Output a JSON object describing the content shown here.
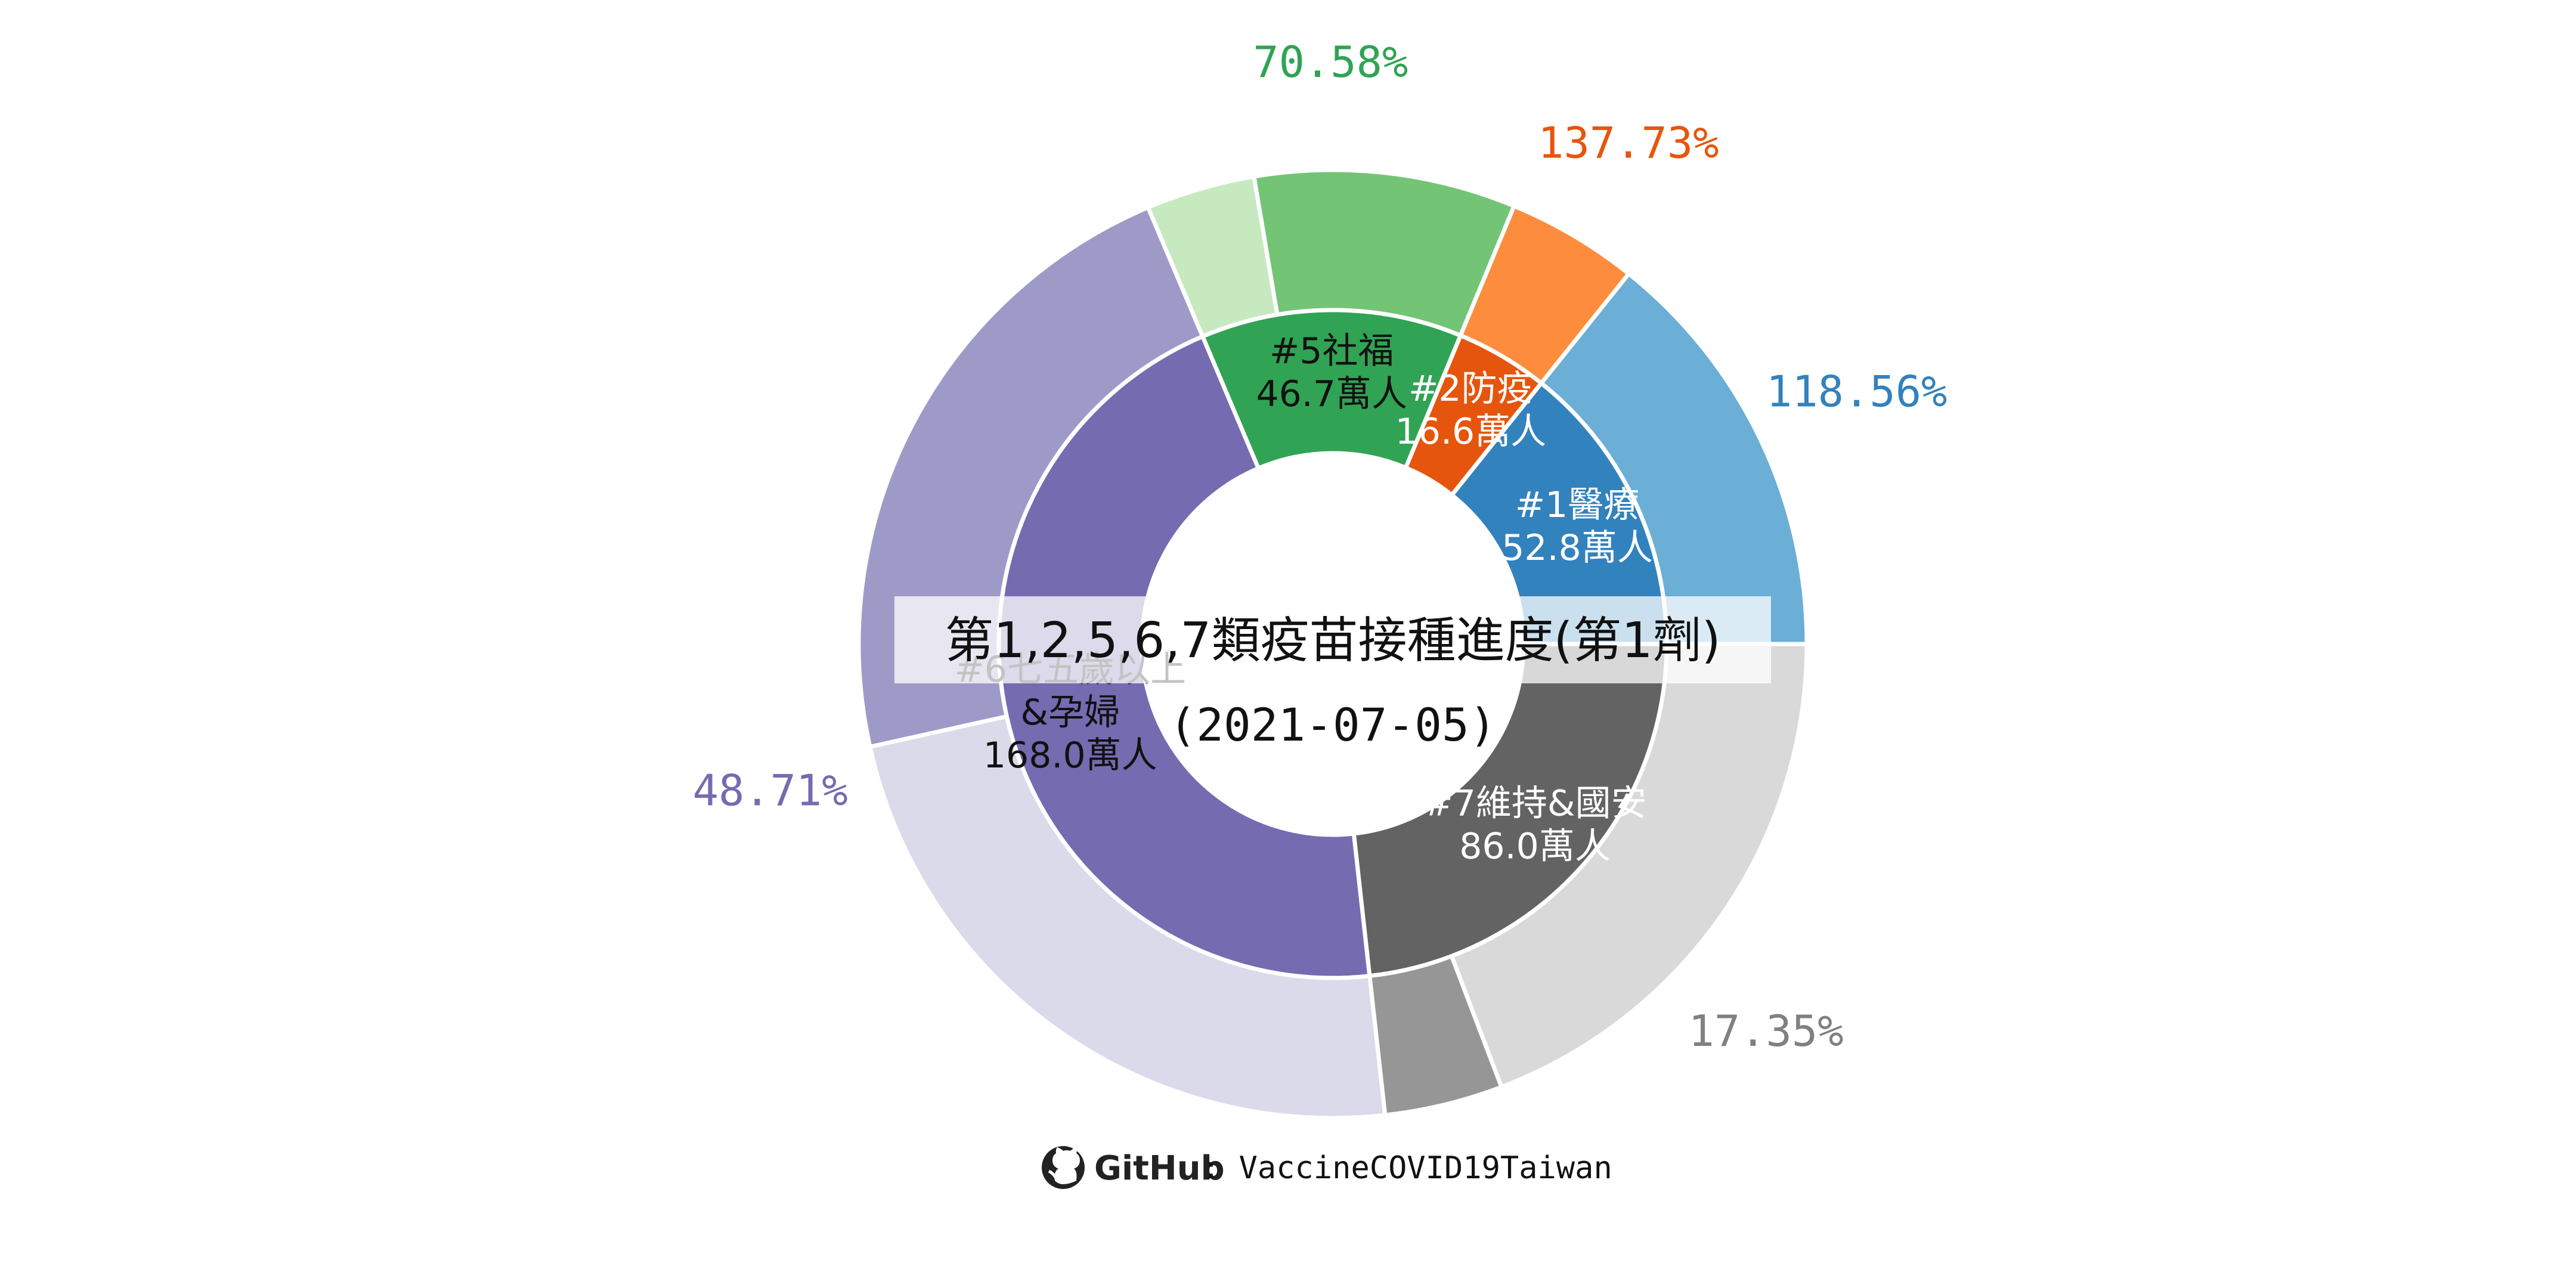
{
  "chart_data": {
    "type": "pie",
    "title": "第1,2,5,6,7類疫苗接種進度(第1劑)",
    "subtitle": "(2021-07-05)",
    "categories": [
      {
        "id": "c1",
        "name": "#1醫療",
        "population": "52.8萬人",
        "value": 52.8,
        "progress": 118.56,
        "progress_label": "118.56%",
        "color_inner": "#3282BD",
        "color_outer": "#6BAED6",
        "color_outer_remain": "#C6DBEF",
        "label_color": "#ffffff",
        "pct_color": "#3282BD"
      },
      {
        "id": "c2",
        "name": "#2防疫",
        "population": "16.6萬人",
        "value": 16.6,
        "progress": 137.73,
        "progress_label": "137.73%",
        "color_inner": "#E6550D",
        "color_outer": "#FD8D3C",
        "color_outer_remain": "#FDD0A2",
        "label_color": "#ffffff",
        "pct_color": "#E6550D"
      },
      {
        "id": "c5",
        "name": "#5社福",
        "population": "46.7萬人",
        "value": 46.7,
        "progress": 70.58,
        "progress_label": "70.58%",
        "color_inner": "#31A354",
        "color_outer": "#74C476",
        "color_outer_remain": "#C7E9C0",
        "label_color": "#111111",
        "pct_color": "#31A354"
      },
      {
        "id": "c6",
        "name": "#6七五歲以上",
        "name2": "&孕婦",
        "population": "168.0萬人",
        "value": 168.0,
        "progress": 48.71,
        "progress_label": "48.71%",
        "color_inner": "#756BB1",
        "color_outer": "#9E9AC8",
        "color_outer_remain": "#DADAEB",
        "label_color": "#111111",
        "pct_color": "#756BB1"
      },
      {
        "id": "c7",
        "name": "#7維持&國安",
        "population": "86.0萬人",
        "value": 86.0,
        "progress": 17.35,
        "progress_label": "17.35%",
        "color_inner": "#636363",
        "color_outer": "#969696",
        "color_outer_remain": "#D9D9D9",
        "label_color": "#ffffff",
        "pct_color": "#808080"
      }
    ]
  },
  "footer": {
    "brand": "GitHub",
    "text": ": VaccineCOVID19Taiwan"
  }
}
